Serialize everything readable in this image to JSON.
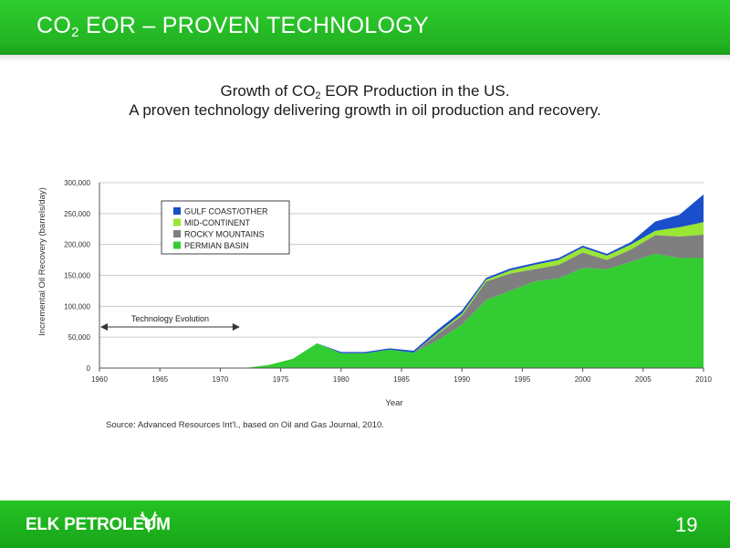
{
  "header": {
    "title_prefix": "CO",
    "title_sub": "2",
    "title_suffix": " EOR – PROVEN TECHNOLOGY"
  },
  "subtitle": {
    "line1_prefix": "Growth of CO",
    "line1_sub": "2",
    "line1_suffix": " EOR Production in the US.",
    "line2": "A proven technology delivering growth in oil production and recovery."
  },
  "chart_data": {
    "type": "area",
    "stacked": true,
    "xlabel": "Year",
    "ylabel": "Incremental Oil Recovery (barrels/day)",
    "xlim": [
      1960,
      2010
    ],
    "ylim": [
      0,
      300000
    ],
    "x_ticks": [
      "1960",
      "1965",
      "1970",
      "1975",
      "1980",
      "1985",
      "1990",
      "1995",
      "2000",
      "2005",
      "2010"
    ],
    "y_ticks": [
      "0",
      "50,000",
      "100,000",
      "150,000",
      "200,000",
      "250,000",
      "300,000"
    ],
    "grid": "horizontal",
    "legend_position": "top-left",
    "annotation": "Technology Evolution",
    "annotation_span": [
      1960,
      1972
    ],
    "x": [
      1960,
      1972,
      1974,
      1976,
      1978,
      1980,
      1982,
      1984,
      1986,
      1988,
      1990,
      1992,
      1994,
      1996,
      1998,
      2000,
      2002,
      2004,
      2006,
      2008,
      2010
    ],
    "series": [
      {
        "name": "PERMIAN BASIN",
        "color": "#33cc33",
        "values": [
          0,
          0,
          5000,
          15000,
          40000,
          24000,
          24000,
          30000,
          25000,
          45000,
          70000,
          110000,
          125000,
          140000,
          145000,
          162000,
          160000,
          172000,
          185000,
          178000,
          178000
        ]
      },
      {
        "name": "ROCKY MOUNTAINS",
        "color": "#7f7f7f",
        "values": [
          0,
          0,
          0,
          0,
          0,
          0,
          0,
          0,
          0,
          10000,
          15000,
          30000,
          28000,
          20000,
          22000,
          25000,
          15000,
          20000,
          30000,
          35000,
          38000
        ]
      },
      {
        "name": "MID-CONTINENT",
        "color": "#99e633",
        "values": [
          0,
          0,
          0,
          0,
          0,
          0,
          0,
          0,
          0,
          2000,
          3000,
          3000,
          5000,
          7000,
          8000,
          8000,
          7000,
          8000,
          7000,
          15000,
          20000
        ]
      },
      {
        "name": "GULF COAST/OTHER",
        "color": "#1a4fcc",
        "values": [
          0,
          0,
          0,
          0,
          0,
          2000,
          2000,
          2000,
          3000,
          5000,
          5000,
          3000,
          3000,
          3000,
          3000,
          3000,
          3000,
          4000,
          15000,
          20000,
          45000
        ]
      }
    ],
    "source": "Source: Advanced Resources Int'l., based on Oil and Gas Journal, 2010."
  },
  "footer": {
    "logo": "ELK PETROLEUM",
    "page_number": "19"
  }
}
